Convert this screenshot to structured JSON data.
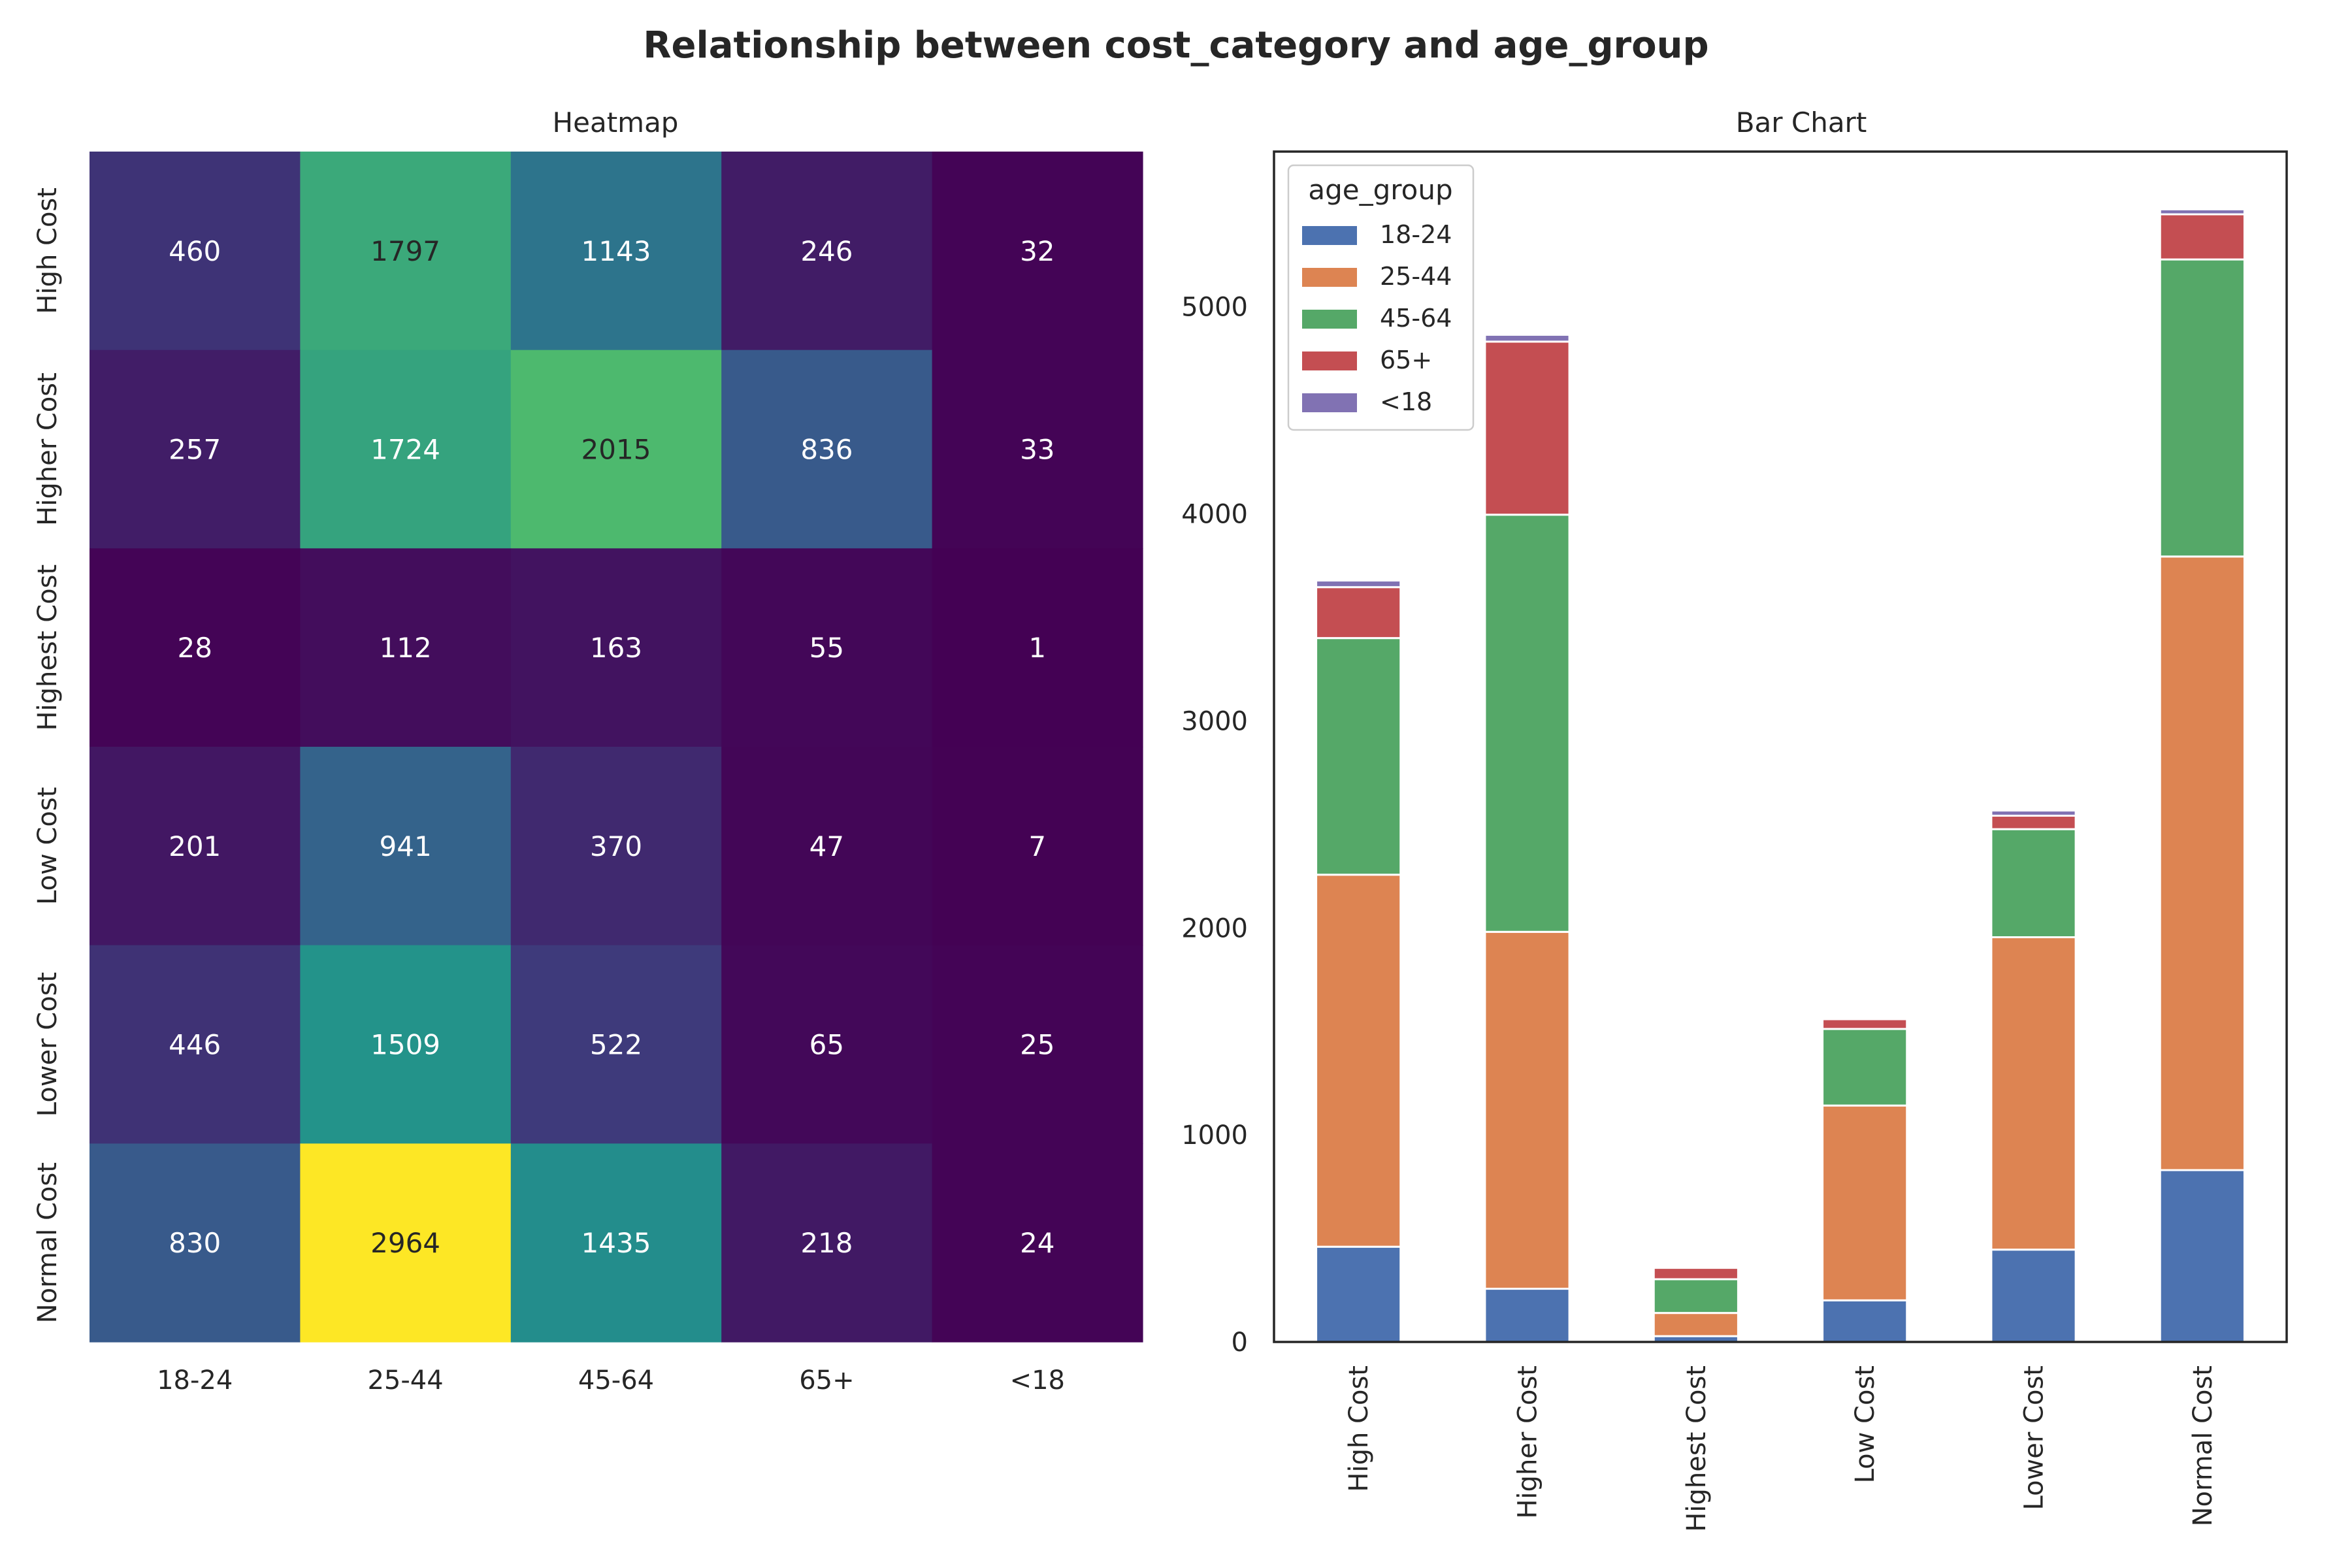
{
  "figure": {
    "title": "Relationship between cost_category and age_group"
  },
  "chart_data": [
    {
      "type": "heatmap",
      "title": "Heatmap",
      "rows": [
        "High Cost",
        "Higher Cost",
        "Highest Cost",
        "Low Cost",
        "Lower Cost",
        "Normal Cost"
      ],
      "columns": [
        "18-24",
        "25-44",
        "45-64",
        "65+",
        "<18"
      ],
      "values": [
        [
          460,
          1797,
          1143,
          246,
          32
        ],
        [
          257,
          1724,
          2015,
          836,
          33
        ],
        [
          28,
          112,
          163,
          55,
          1
        ],
        [
          201,
          941,
          370,
          47,
          7
        ],
        [
          446,
          1509,
          522,
          65,
          25
        ],
        [
          830,
          2964,
          1435,
          218,
          24
        ]
      ],
      "colormap": "viridis",
      "value_range": [
        1,
        2964
      ]
    },
    {
      "type": "bar",
      "stacked": true,
      "title": "Bar Chart",
      "categories": [
        "High Cost",
        "Higher Cost",
        "Highest Cost",
        "Low Cost",
        "Lower Cost",
        "Normal Cost"
      ],
      "series": [
        {
          "name": "18-24",
          "color": "#4c72b0",
          "values": [
            460,
            257,
            28,
            201,
            446,
            830
          ]
        },
        {
          "name": "25-44",
          "color": "#dd8452",
          "values": [
            1797,
            1724,
            112,
            941,
            1509,
            2964
          ]
        },
        {
          "name": "45-64",
          "color": "#55a868",
          "values": [
            1143,
            2015,
            163,
            370,
            522,
            1435
          ]
        },
        {
          "name": "65+",
          "color": "#c44e52",
          "values": [
            246,
            836,
            55,
            47,
            65,
            218
          ]
        },
        {
          "name": "<18",
          "color": "#8172b3",
          "values": [
            32,
            33,
            1,
            7,
            25,
            24
          ]
        }
      ],
      "yticks": [
        0,
        1000,
        2000,
        3000,
        4000,
        5000
      ],
      "ylim": [
        0,
        5750
      ],
      "legend": {
        "title": "age_group",
        "placement": "top-left"
      },
      "xtick_rotation": 90
    }
  ]
}
